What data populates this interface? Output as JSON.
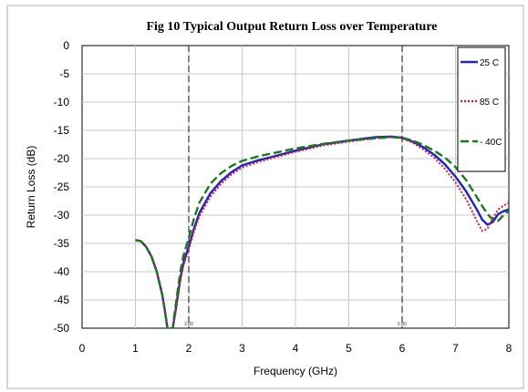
{
  "chart_data": {
    "type": "line",
    "title": "Fig 10 Typical Output Return Loss over Temperature",
    "xlabel": "Frequency (GHz)",
    "ylabel": "Return Loss (dB)",
    "xlim": [
      0,
      8
    ],
    "ylim": [
      -50,
      0
    ],
    "x_ticks": [
      0,
      1,
      2,
      3,
      4,
      5,
      6,
      7,
      8
    ],
    "y_ticks": [
      0,
      -5,
      -10,
      -15,
      -20,
      -25,
      -30,
      -35,
      -40,
      -45,
      -50
    ],
    "grid": true,
    "legend_position": "top-right",
    "markers": [
      {
        "x": 2.0,
        "label": "2.00"
      },
      {
        "x": 6.0,
        "label": "6.00"
      }
    ],
    "series": [
      {
        "name": "25 C",
        "color": "#1f1fd6",
        "style": "solid",
        "x": [
          1.0,
          1.1,
          1.2,
          1.3,
          1.4,
          1.5,
          1.55,
          1.6,
          1.63,
          1.65,
          1.67,
          1.7,
          1.75,
          1.8,
          1.85,
          1.9,
          2.0,
          2.1,
          2.2,
          2.4,
          2.6,
          2.8,
          3.0,
          3.3,
          3.6,
          4.0,
          4.5,
          5.0,
          5.5,
          5.8,
          6.0,
          6.2,
          6.4,
          6.6,
          6.8,
          7.0,
          7.2,
          7.4,
          7.5,
          7.6,
          7.7,
          7.8,
          7.9,
          8.0
        ],
        "y": [
          -34.4,
          -34.6,
          -35.6,
          -37.3,
          -40,
          -44,
          -46.8,
          -50,
          -51,
          -50,
          -51,
          -50,
          -47,
          -43.8,
          -40.8,
          -38.5,
          -35.5,
          -32.3,
          -29.6,
          -26.2,
          -24,
          -22.4,
          -21.2,
          -20.3,
          -19.6,
          -18.6,
          -17.5,
          -16.8,
          -16.2,
          -16.1,
          -16.3,
          -17.0,
          -18.0,
          -19.3,
          -21.0,
          -23.2,
          -25.8,
          -29.0,
          -30.8,
          -31.7,
          -31.2,
          -29.8,
          -29.3,
          -29.0
        ]
      },
      {
        "name": "85 C",
        "color": "#e01b1b",
        "style": "dotted",
        "x": [
          1.0,
          1.1,
          1.2,
          1.3,
          1.4,
          1.5,
          1.55,
          1.6,
          1.63,
          1.65,
          1.67,
          1.7,
          1.75,
          1.8,
          1.85,
          1.9,
          2.0,
          2.1,
          2.2,
          2.4,
          2.6,
          2.8,
          3.0,
          3.3,
          3.6,
          4.0,
          4.5,
          5.0,
          5.5,
          5.8,
          6.0,
          6.2,
          6.4,
          6.6,
          6.8,
          7.0,
          7.2,
          7.4,
          7.5,
          7.6,
          7.7,
          7.8,
          7.9,
          8.0
        ],
        "y": [
          -34.4,
          -34.6,
          -35.6,
          -37.3,
          -40,
          -44,
          -46.8,
          -50,
          -51,
          -50,
          -51,
          -50,
          -47.2,
          -44.2,
          -41.2,
          -39.0,
          -36.0,
          -32.8,
          -30.2,
          -26.8,
          -24.5,
          -22.8,
          -21.6,
          -20.6,
          -19.8,
          -18.8,
          -17.7,
          -17.0,
          -16.4,
          -16.2,
          -16.4,
          -17.2,
          -18.4,
          -19.8,
          -21.8,
          -24.2,
          -27.2,
          -31.0,
          -32.8,
          -32.4,
          -30.5,
          -29.0,
          -28.3,
          -27.8
        ]
      },
      {
        "name": "- 40C",
        "color": "#1a7a1a",
        "style": "dashed",
        "x": [
          1.0,
          1.1,
          1.2,
          1.3,
          1.4,
          1.5,
          1.55,
          1.6,
          1.63,
          1.65,
          1.67,
          1.7,
          1.75,
          1.8,
          1.85,
          1.9,
          2.0,
          2.1,
          2.2,
          2.4,
          2.6,
          2.8,
          3.0,
          3.3,
          3.6,
          4.0,
          4.5,
          5.0,
          5.5,
          5.8,
          6.0,
          6.2,
          6.4,
          6.6,
          6.8,
          7.0,
          7.2,
          7.4,
          7.5,
          7.6,
          7.7,
          7.8,
          7.9,
          8.0
        ],
        "y": [
          -34.4,
          -34.6,
          -35.6,
          -37.3,
          -40,
          -44,
          -46.8,
          -50,
          -51,
          -50,
          -51,
          -50,
          -46.2,
          -42.8,
          -39.6,
          -37.2,
          -34.0,
          -30.5,
          -27.8,
          -24.5,
          -22.6,
          -21.3,
          -20.4,
          -19.6,
          -19.0,
          -18.2,
          -17.4,
          -16.8,
          -16.4,
          -16.2,
          -16.3,
          -16.8,
          -17.6,
          -18.6,
          -19.8,
          -21.5,
          -23.8,
          -26.8,
          -28.4,
          -29.8,
          -30.8,
          -31.0,
          -30.0,
          -29.2
        ]
      }
    ]
  }
}
